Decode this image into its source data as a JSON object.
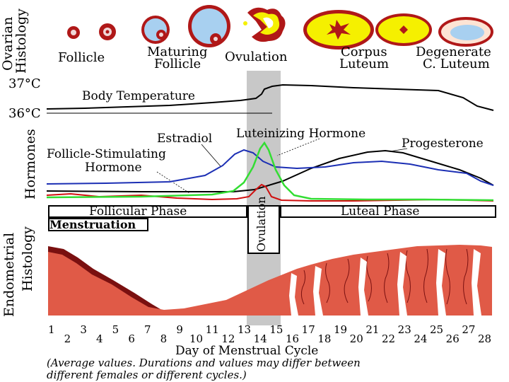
{
  "ovarian_label": [
    "Ovarian",
    "Histology"
  ],
  "ovarian_stages": {
    "follicle": "Follicle",
    "maturing_follicle": [
      "Maturing",
      "Follicle"
    ],
    "ovulation": "Ovulation",
    "corpus_luteum": [
      "Corpus",
      "Luteum"
    ],
    "degenerate": [
      "Degenerate",
      "C. Luteum"
    ]
  },
  "temperature": {
    "high": "37°C",
    "low": "36°C",
    "label": "Body Temperature"
  },
  "hormones_label": "Hormones",
  "hormone_labels": {
    "estradiol": "Estradiol",
    "lh": "Luteinizing Hormone",
    "progesterone": "Progesterone",
    "fsh": [
      "Follicle-Stimulating",
      "Hormone"
    ]
  },
  "phases": {
    "follicular": "Follicular Phase",
    "luteal": "Luteal Phase",
    "menstruation": "Menstruation",
    "ovulation": "Ovulation"
  },
  "endometrial_label": [
    "Endometrial",
    "Histology"
  ],
  "x_axis": {
    "days": [
      "1",
      "2",
      "3",
      "4",
      "5",
      "6",
      "7",
      "8",
      "9",
      "10",
      "11",
      "12",
      "13",
      "14",
      "15",
      "16",
      "17",
      "18",
      "19",
      "20",
      "21",
      "22",
      "23",
      "24",
      "25",
      "26",
      "27",
      "28"
    ],
    "title": "Day of Menstrual Cycle"
  },
  "footnote": [
    "(Average values. Durations and values may differ between",
    "different females or different cycles.)"
  ],
  "colors": {
    "estradiol": "#1c2fb4",
    "lh": "#33dd33",
    "fsh": "#d01010",
    "progesterone": "#000000",
    "endometrium": "#e05a47",
    "endometrium_dark": "#7a1010",
    "ovulation_band": "#c8c8c8",
    "follicle_red": "#b01818",
    "follicle_blue": "#a8d0f0",
    "corpus_yellow": "#f5f000"
  }
}
